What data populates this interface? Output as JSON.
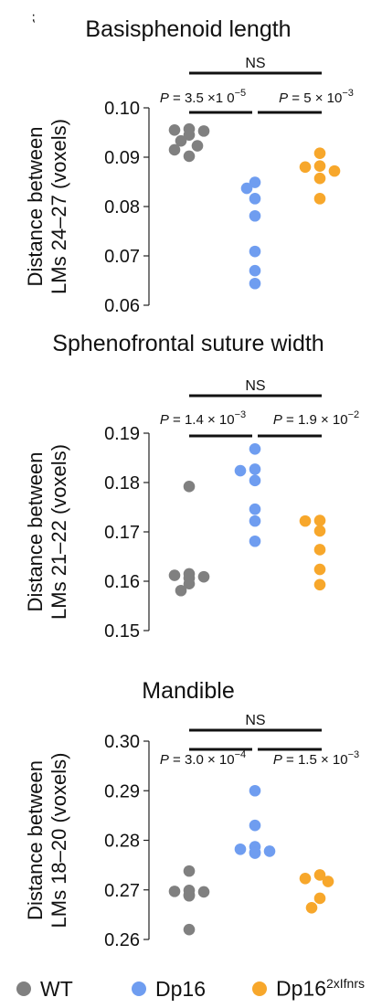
{
  "corner_mark": "⁏",
  "colors": {
    "WT": "#808080",
    "Dp16": "#6f9df0",
    "Dp16_2xIfnrs": "#f7a72b"
  },
  "chart_data": [
    {
      "type": "scatter",
      "title": "Basisphenoid length",
      "ylabel_line1": "Distance between",
      "ylabel_line2": "LMs 24–27 (voxels)",
      "ylim": [
        0.06,
        0.1
      ],
      "yticks": [
        "0.10",
        "0.09",
        "0.08",
        "0.07",
        "0.06"
      ],
      "ytick_values": [
        0.1,
        0.09,
        0.08,
        0.07,
        0.06
      ],
      "groups": [
        "WT",
        "Dp16",
        "Dp16_2xIfnrs"
      ],
      "series": [
        {
          "name": "WT",
          "values": [
            0.0957,
            0.0955,
            0.0953,
            0.0945,
            0.0933,
            0.0923,
            0.0915,
            0.0902
          ]
        },
        {
          "name": "Dp16",
          "values": [
            0.0849,
            0.0837,
            0.0816,
            0.0781,
            0.0709,
            0.067,
            0.0644
          ]
        },
        {
          "name": "Dp16_2xIfnrs",
          "values": [
            0.0908,
            0.0882,
            0.088,
            0.0872,
            0.0857,
            0.0816
          ]
        }
      ],
      "comparisons": [
        {
          "label": "NS"
        },
        {
          "label_p": "P",
          "label_eq": " = 3.5 ×1 0",
          "label_exp": "−5"
        },
        {
          "label_p": "P",
          "label_eq": " = 5 × 10",
          "label_exp": "−3"
        }
      ]
    },
    {
      "type": "scatter",
      "title": "Sphenofrontal suture width",
      "ylabel_line1": "Distance between",
      "ylabel_line2": "LMs 21–22 (voxels)",
      "ylim": [
        0.15,
        0.19
      ],
      "yticks": [
        "0.19",
        "0.18",
        "0.17",
        "0.16",
        "0.15"
      ],
      "ytick_values": [
        0.19,
        0.18,
        0.17,
        0.16,
        0.15
      ],
      "groups": [
        "WT",
        "Dp16",
        "Dp16_2xIfnrs"
      ],
      "series": [
        {
          "name": "WT",
          "values": [
            0.1792,
            0.1615,
            0.1612,
            0.1609,
            0.1606,
            0.1595,
            0.1581
          ]
        },
        {
          "name": "Dp16",
          "values": [
            0.1868,
            0.1827,
            0.1824,
            0.1804,
            0.1746,
            0.1722,
            0.1681
          ]
        },
        {
          "name": "Dp16_2xIfnrs",
          "values": [
            0.1723,
            0.1722,
            0.1702,
            0.1664,
            0.1624,
            0.1593
          ]
        }
      ],
      "comparisons": [
        {
          "label": "NS"
        },
        {
          "label_p": "P",
          "label_eq": " = 1.4 × 10",
          "label_exp": "−3"
        },
        {
          "label_p": "P",
          "label_eq": " = 1.9 × 10",
          "label_exp": "−2"
        }
      ]
    },
    {
      "type": "scatter",
      "title": "Mandible",
      "ylabel_line1": "Distance between",
      "ylabel_line2": "LMs 18–20 (voxels)",
      "ylim": [
        0.26,
        0.3
      ],
      "yticks": [
        "0.30",
        "0.29",
        "0.28",
        "0.27",
        "0.26"
      ],
      "ytick_values": [
        0.3,
        0.29,
        0.28,
        0.27,
        0.26
      ],
      "groups": [
        "WT",
        "Dp16",
        "Dp16_2xIfnrs"
      ],
      "series": [
        {
          "name": "WT",
          "values": [
            0.2738,
            0.2699,
            0.2697,
            0.2696,
            0.269,
            0.2688,
            0.262
          ]
        },
        {
          "name": "Dp16",
          "values": [
            0.29,
            0.283,
            0.2787,
            0.2782,
            0.2778,
            0.2776,
            0.2774
          ]
        },
        {
          "name": "Dp16_2xIfnrs",
          "values": [
            0.273,
            0.2723,
            0.2717,
            0.2683,
            0.2664
          ]
        }
      ],
      "comparisons": [
        {
          "label": "NS"
        },
        {
          "label_p": "P",
          "label_eq": " = 3.0 × 10",
          "label_exp": "−4"
        },
        {
          "label_p": "P",
          "label_eq": " = 1.5 × 10",
          "label_exp": "−3"
        }
      ]
    }
  ],
  "legend": {
    "items": [
      {
        "key": "WT",
        "label": "WT",
        "sup": ""
      },
      {
        "key": "Dp16",
        "label": "Dp16",
        "sup": ""
      },
      {
        "key": "Dp16_2xIfnrs",
        "label": "Dp16",
        "sup": "2xIfnrs"
      }
    ]
  }
}
